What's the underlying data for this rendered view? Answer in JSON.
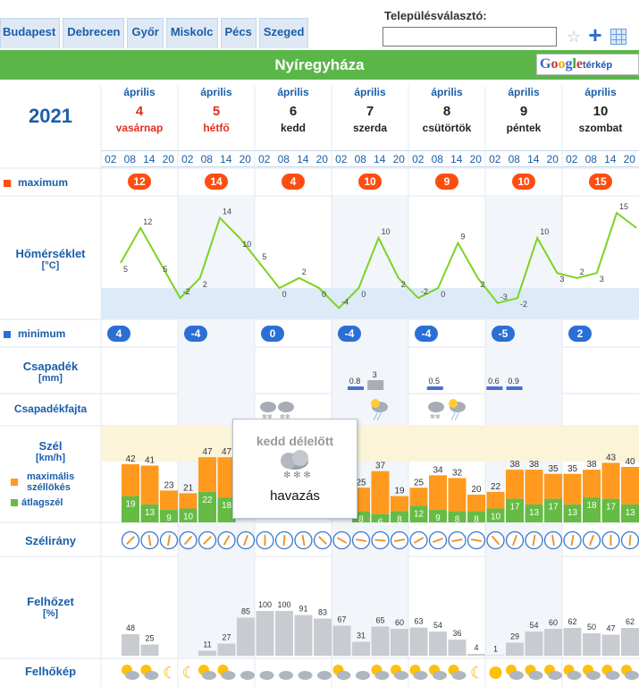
{
  "tabs": [
    "Budapest",
    "Debrecen",
    "Győr",
    "Miskolc",
    "Pécs",
    "Szeged"
  ],
  "selector": {
    "label": "Településválasztó:",
    "value": ""
  },
  "city": "Nyíregyháza",
  "google_maps": {
    "brand": "Google",
    "suffix": "térkép"
  },
  "year": "2021",
  "days": [
    {
      "month": "április",
      "day": "4",
      "weekday": "vasárnap",
      "style": "red"
    },
    {
      "month": "április",
      "day": "5",
      "weekday": "hétfő",
      "style": "red"
    },
    {
      "month": "április",
      "day": "6",
      "weekday": "kedd",
      "style": "dark"
    },
    {
      "month": "április",
      "day": "7",
      "weekday": "szerda",
      "style": "dark"
    },
    {
      "month": "április",
      "day": "8",
      "weekday": "csütörtök",
      "style": "dark"
    },
    {
      "month": "április",
      "day": "9",
      "weekday": "péntek",
      "style": "dark"
    },
    {
      "month": "április",
      "day": "10",
      "weekday": "szombat",
      "style": "dark"
    }
  ],
  "hours": [
    "02",
    "08",
    "14",
    "20"
  ],
  "labels": {
    "maximum": "maximum",
    "temperature": "Hőmérséklet",
    "temperature_unit": "[°C]",
    "minimum": "minimum",
    "precip": "Csapadék",
    "precip_unit": "[mm]",
    "precip_type": "Csapadékfajta",
    "wind": "Szél",
    "wind_unit": "[km/h]",
    "wind_gust": "maximális széllökés",
    "wind_avg": "átlagszél",
    "wind_dir": "Szélirány",
    "cloud": "Felhőzet",
    "cloud_unit": "[%]",
    "cloud_pic": "Felhőkép"
  },
  "daily_max": [
    12,
    14,
    4,
    10,
    9,
    10,
    15
  ],
  "daily_min": [
    4,
    -4,
    0,
    -4,
    -4,
    -5,
    2
  ],
  "temperature": [
    5,
    12,
    5,
    -2,
    2,
    14,
    10,
    5,
    0,
    2,
    0,
    -4,
    0,
    10,
    2,
    -2,
    0,
    9,
    2,
    -3,
    -2,
    10,
    3,
    2,
    3,
    15,
    12
  ],
  "precip": [
    {
      "slot": 10,
      "value": "0.8",
      "color": "#4a6fd1"
    },
    {
      "slot": 11,
      "value": "3",
      "color": "#a9adb3"
    },
    {
      "slot": 14,
      "value": "0.5",
      "color": "#4a6fd1"
    },
    {
      "slot": 17,
      "value": "0.6",
      "color": "#4a6fd1"
    },
    {
      "slot": 18,
      "value": "0.9",
      "color": "#4a6fd1"
    }
  ],
  "wind_gust": [
    42,
    41,
    23,
    21,
    47,
    47,
    null,
    null,
    null,
    null,
    null,
    null,
    25,
    37,
    19,
    25,
    34,
    32,
    20,
    22,
    38,
    38,
    35,
    35,
    38,
    43,
    40
  ],
  "wind_avg": [
    19,
    13,
    9,
    10,
    22,
    18,
    null,
    null,
    null,
    null,
    null,
    null,
    8,
    6,
    8,
    12,
    9,
    8,
    8,
    10,
    17,
    13,
    17,
    13,
    18,
    17,
    13
  ],
  "cloud": [
    48,
    25,
    null,
    null,
    11,
    27,
    85,
    100,
    100,
    91,
    83,
    67,
    31,
    65,
    60,
    63,
    54,
    36,
    4,
    1,
    29,
    54,
    60,
    62,
    50,
    47,
    62
  ],
  "popup": {
    "title": "kedd délelőtt",
    "text": "havazás"
  },
  "colors": {
    "green": "#5bb64a",
    "orange": "#ff9a1e",
    "wind_green": "#66bb44",
    "max_pill": "#ff4d10",
    "min_pill": "#2a6fd6",
    "cloud_bar": "#c8ccd1"
  }
}
